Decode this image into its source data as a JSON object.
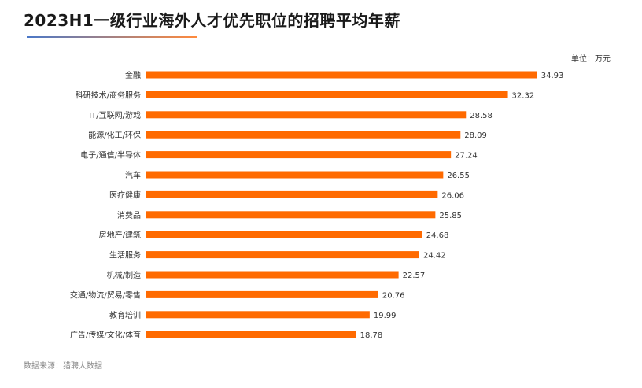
{
  "title": "2023H1一级行业海外人才优先职位的招聘平均年薪",
  "unit_label": "单位：万元",
  "source": "数据来源：猎聘大数据",
  "colors": {
    "bar": "#ff6a00",
    "underline_start": "#4a78c8",
    "underline_end": "#ff8a3d"
  },
  "chart_data": {
    "type": "bar",
    "orientation": "horizontal",
    "title": "2023H1一级行业海外人才优先职位的招聘平均年薪",
    "categories": [
      "金融",
      "科研技术/商务服务",
      "IT/互联网/游戏",
      "能源/化工/环保",
      "电子/通信/半导体",
      "汽车",
      "医疗健康",
      "消费品",
      "房地产/建筑",
      "生活服务",
      "机械/制造",
      "交通/物流/贸易/零售",
      "教育培训",
      "广告/传媒/文化/体育"
    ],
    "values": [
      34.93,
      32.32,
      28.58,
      28.09,
      27.24,
      26.55,
      26.06,
      25.85,
      24.68,
      24.42,
      22.57,
      20.76,
      19.99,
      18.78
    ],
    "xlim": [
      0,
      35
    ],
    "grid": false,
    "data_labels": true
  }
}
